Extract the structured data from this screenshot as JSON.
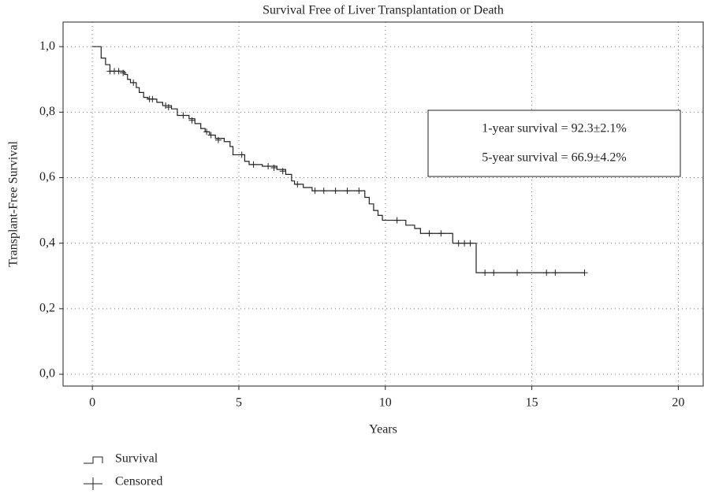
{
  "chart_data": {
    "type": "step",
    "title": "Survival Free of Liver Transplantation or Death",
    "xlabel": "Years",
    "ylabel": "Transplant-Free Survival",
    "annotations": [
      "1-year survival = 92.3±2.1%",
      "5-year survival = 66.9±4.2%"
    ],
    "xlim": [
      -1,
      20.85
    ],
    "ylim": [
      -0.036,
      1.075
    ],
    "xticks": [
      0,
      5,
      10,
      15,
      20
    ],
    "yticks": [
      {
        "value": 0,
        "label": "0,0"
      },
      {
        "value": 0.2,
        "label": "0,2"
      },
      {
        "value": 0.4,
        "label": "0,4"
      },
      {
        "value": 0.6,
        "label": "0,6"
      },
      {
        "value": 0.8,
        "label": "0,8"
      },
      {
        "value": 1,
        "label": "1,0"
      }
    ],
    "grid": true,
    "series": [
      {
        "name": "Survival",
        "color": "#222222",
        "x": [
          0,
          0.3,
          0.45,
          0.6,
          1.1,
          1.2,
          1.3,
          1.5,
          1.6,
          1.75,
          1.9,
          2.2,
          2.4,
          2.7,
          2.9,
          3.3,
          3.5,
          3.7,
          3.85,
          4.0,
          4.2,
          4.5,
          4.7,
          4.8,
          5.2,
          5.35,
          5.8,
          6.3,
          6.6,
          6.8,
          6.9,
          7.2,
          7.5,
          9.3,
          9.45,
          9.6,
          9.75,
          9.9,
          10.7,
          11.0,
          11.2,
          12.3,
          13.1,
          16.8
        ],
        "values": [
          1.0,
          0.965,
          0.945,
          0.925,
          0.915,
          0.9,
          0.89,
          0.875,
          0.86,
          0.845,
          0.84,
          0.83,
          0.82,
          0.81,
          0.79,
          0.78,
          0.765,
          0.75,
          0.74,
          0.73,
          0.72,
          0.71,
          0.695,
          0.67,
          0.65,
          0.64,
          0.635,
          0.625,
          0.61,
          0.59,
          0.58,
          0.57,
          0.56,
          0.54,
          0.52,
          0.5,
          0.485,
          0.47,
          0.455,
          0.445,
          0.43,
          0.4,
          0.31,
          0.31
        ]
      },
      {
        "name": "Censored",
        "color": "#222222",
        "x": [
          0.6,
          0.75,
          0.9,
          1.05,
          1.4,
          1.95,
          2.05,
          2.5,
          2.6,
          3.1,
          3.4,
          3.9,
          4.05,
          4.3,
          5.1,
          5.5,
          6.0,
          6.2,
          6.5,
          7.0,
          7.6,
          7.9,
          8.3,
          8.7,
          9.1,
          10.4,
          11.5,
          11.9,
          12.5,
          12.7,
          12.9,
          13.4,
          13.7,
          14.5,
          15.5,
          15.8,
          16.8
        ],
        "values": [
          0.925,
          0.925,
          0.925,
          0.92,
          0.89,
          0.84,
          0.84,
          0.82,
          0.815,
          0.79,
          0.775,
          0.74,
          0.73,
          0.715,
          0.67,
          0.64,
          0.635,
          0.63,
          0.62,
          0.58,
          0.56,
          0.56,
          0.56,
          0.56,
          0.56,
          0.47,
          0.43,
          0.43,
          0.4,
          0.4,
          0.4,
          0.31,
          0.31,
          0.31,
          0.31,
          0.31,
          0.31
        ]
      }
    ]
  }
}
